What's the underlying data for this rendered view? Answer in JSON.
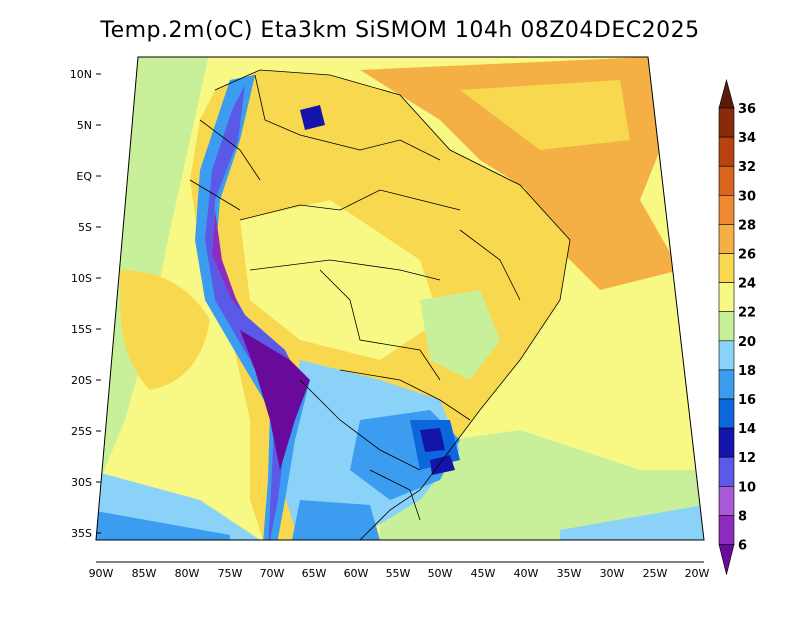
{
  "title": "Temp.2m(oC) Eta3km SiSMOM 104h 08Z04DEC2025",
  "map": {
    "lat_labels": [
      "10N",
      "5N",
      "EQ",
      "5S",
      "10S",
      "15S",
      "20S",
      "25S",
      "30S",
      "35S"
    ],
    "lon_labels": [
      "90W",
      "85W",
      "80W",
      "75W",
      "70W",
      "65W",
      "60W",
      "55W",
      "50W",
      "45W",
      "40W",
      "35W",
      "30W",
      "25W",
      "20W"
    ]
  },
  "colorbar": {
    "labels": [
      "6",
      "8",
      "10",
      "12",
      "14",
      "16",
      "18",
      "20",
      "22",
      "24",
      "26",
      "28",
      "30",
      "32",
      "34",
      "36"
    ],
    "colors": [
      "#6a0a9c",
      "#8e2cc0",
      "#a85ad8",
      "#5a5ae6",
      "#1414aa",
      "#0c66dc",
      "#3c9cf0",
      "#8ad2f8",
      "#c8f09a",
      "#f8f884",
      "#f8d84e",
      "#f4b044",
      "#f08a32",
      "#d8641e",
      "#b84210",
      "#8a2a0a",
      "#5a1c06"
    ]
  }
}
